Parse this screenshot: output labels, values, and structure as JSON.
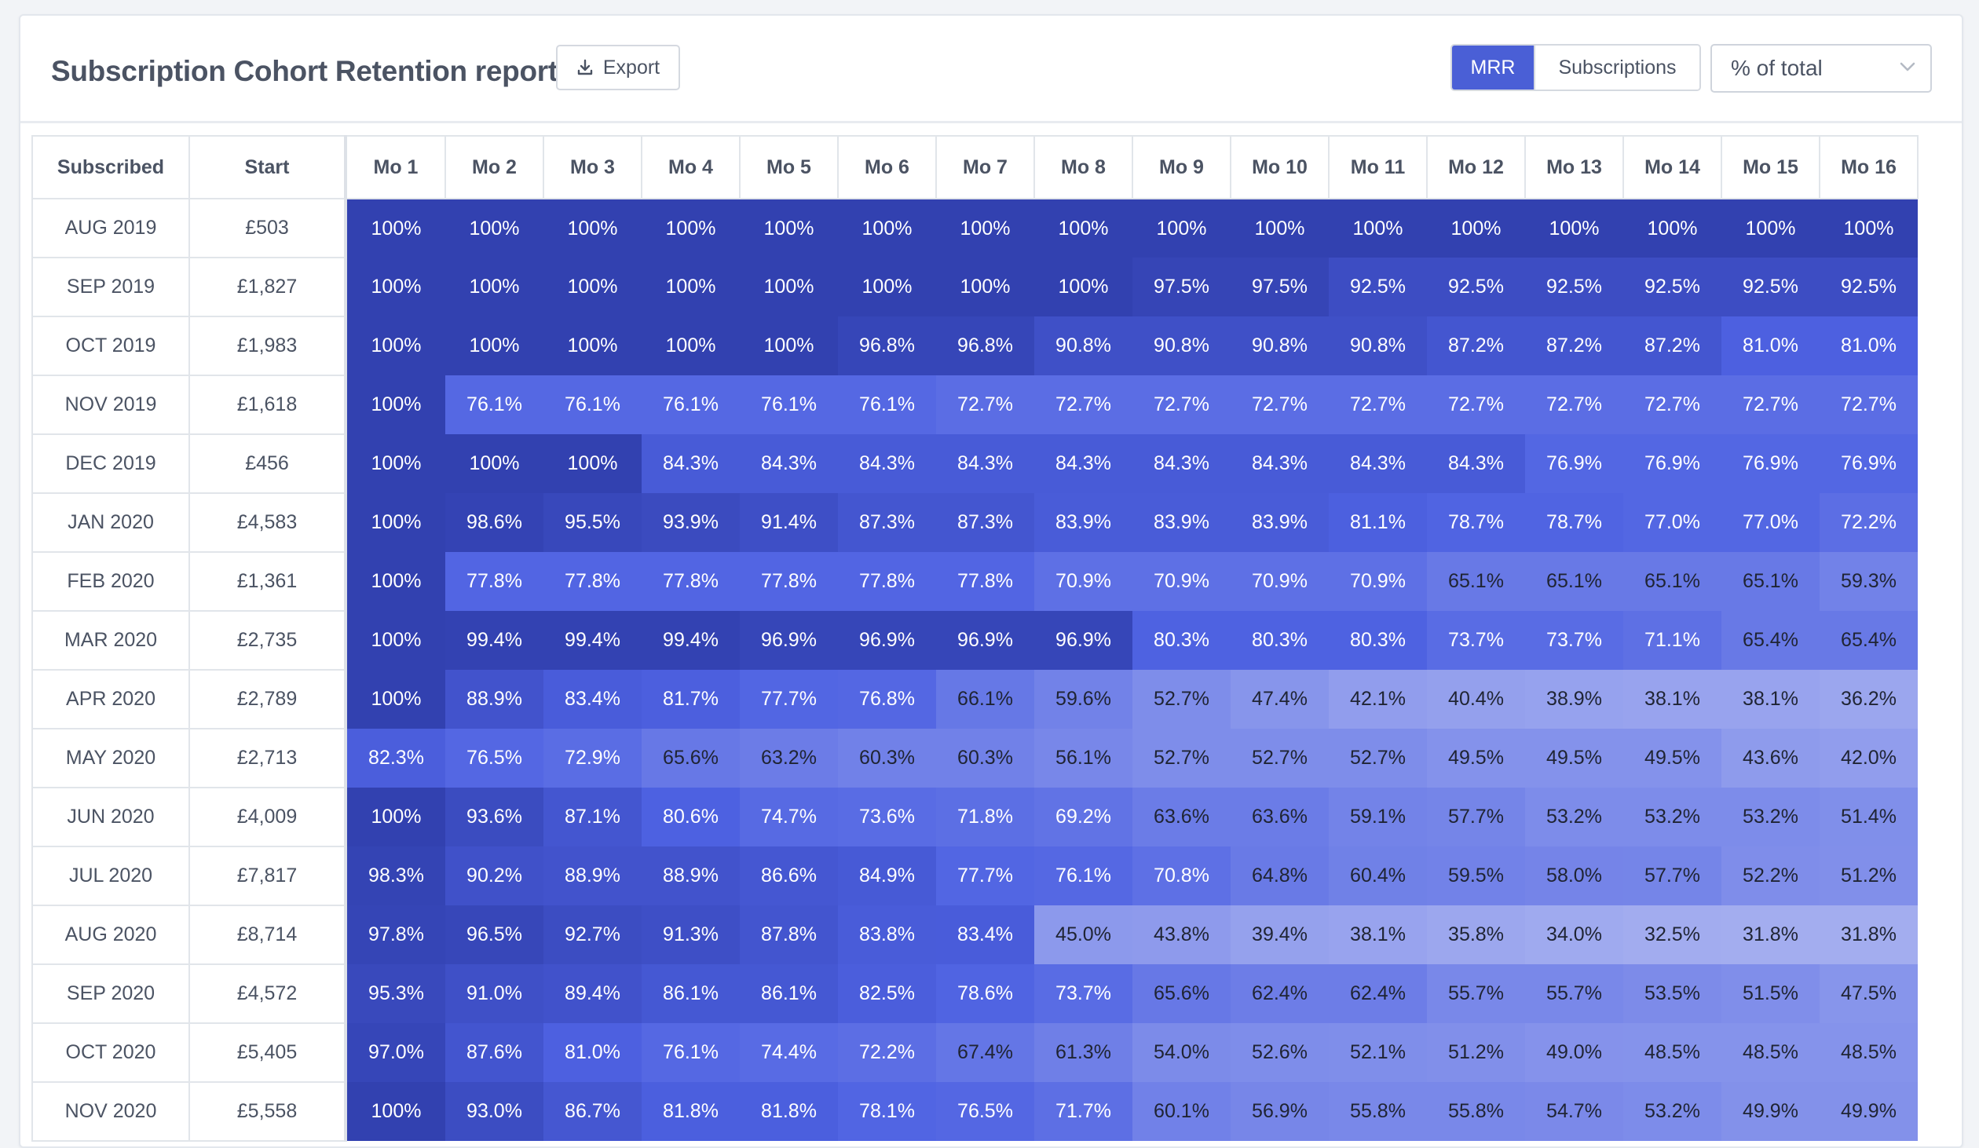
{
  "header": {
    "title": "Subscription Cohort Retention report",
    "export_label": "Export",
    "toggle": {
      "mrr": "MRR",
      "subscriptions": "Subscriptions",
      "active": "MRR"
    },
    "select_value": "% of total"
  },
  "colors": {
    "accent": "#4a5fd6",
    "heat_dark": "#3241b0",
    "heat_light": "#a6b0f0"
  },
  "table": {
    "headers": [
      "Subscribed",
      "Start",
      "Mo 1",
      "Mo 2",
      "Mo 3",
      "Mo 4",
      "Mo 5",
      "Mo 6",
      "Mo 7",
      "Mo 8",
      "Mo 9",
      "Mo 10",
      "Mo 11",
      "Mo 12",
      "Mo 13",
      "Mo 14",
      "Mo 15",
      "Mo 16"
    ],
    "rows": [
      {
        "subscribed": "AUG 2019",
        "start": "£503",
        "values": [
          "100%",
          "100%",
          "100%",
          "100%",
          "100%",
          "100%",
          "100%",
          "100%",
          "100%",
          "100%",
          "100%",
          "100%",
          "100%",
          "100%",
          "100%",
          "100%"
        ]
      },
      {
        "subscribed": "SEP 2019",
        "start": "£1,827",
        "values": [
          "100%",
          "100%",
          "100%",
          "100%",
          "100%",
          "100%",
          "100%",
          "100%",
          "97.5%",
          "97.5%",
          "92.5%",
          "92.5%",
          "92.5%",
          "92.5%",
          "92.5%",
          "92.5%"
        ]
      },
      {
        "subscribed": "OCT 2019",
        "start": "£1,983",
        "values": [
          "100%",
          "100%",
          "100%",
          "100%",
          "100%",
          "96.8%",
          "96.8%",
          "90.8%",
          "90.8%",
          "90.8%",
          "90.8%",
          "87.2%",
          "87.2%",
          "87.2%",
          "81.0%",
          "81.0%"
        ]
      },
      {
        "subscribed": "NOV 2019",
        "start": "£1,618",
        "values": [
          "100%",
          "76.1%",
          "76.1%",
          "76.1%",
          "76.1%",
          "76.1%",
          "72.7%",
          "72.7%",
          "72.7%",
          "72.7%",
          "72.7%",
          "72.7%",
          "72.7%",
          "72.7%",
          "72.7%",
          "72.7%"
        ]
      },
      {
        "subscribed": "DEC 2019",
        "start": "£456",
        "values": [
          "100%",
          "100%",
          "100%",
          "84.3%",
          "84.3%",
          "84.3%",
          "84.3%",
          "84.3%",
          "84.3%",
          "84.3%",
          "84.3%",
          "84.3%",
          "76.9%",
          "76.9%",
          "76.9%",
          "76.9%"
        ]
      },
      {
        "subscribed": "JAN 2020",
        "start": "£4,583",
        "values": [
          "100%",
          "98.6%",
          "95.5%",
          "93.9%",
          "91.4%",
          "87.3%",
          "87.3%",
          "83.9%",
          "83.9%",
          "83.9%",
          "81.1%",
          "78.7%",
          "78.7%",
          "77.0%",
          "77.0%",
          "72.2%"
        ]
      },
      {
        "subscribed": "FEB 2020",
        "start": "£1,361",
        "values": [
          "100%",
          "77.8%",
          "77.8%",
          "77.8%",
          "77.8%",
          "77.8%",
          "77.8%",
          "70.9%",
          "70.9%",
          "70.9%",
          "70.9%",
          "65.1%",
          "65.1%",
          "65.1%",
          "65.1%",
          "59.3%"
        ]
      },
      {
        "subscribed": "MAR 2020",
        "start": "£2,735",
        "values": [
          "100%",
          "99.4%",
          "99.4%",
          "99.4%",
          "96.9%",
          "96.9%",
          "96.9%",
          "96.9%",
          "80.3%",
          "80.3%",
          "80.3%",
          "73.7%",
          "73.7%",
          "71.1%",
          "65.4%",
          "65.4%"
        ]
      },
      {
        "subscribed": "APR 2020",
        "start": "£2,789",
        "values": [
          "100%",
          "88.9%",
          "83.4%",
          "81.7%",
          "77.7%",
          "76.8%",
          "66.1%",
          "59.6%",
          "52.7%",
          "47.4%",
          "42.1%",
          "40.4%",
          "38.9%",
          "38.1%",
          "38.1%",
          "36.2%"
        ]
      },
      {
        "subscribed": "MAY 2020",
        "start": "£2,713",
        "values": [
          "82.3%",
          "76.5%",
          "72.9%",
          "65.6%",
          "63.2%",
          "60.3%",
          "60.3%",
          "56.1%",
          "52.7%",
          "52.7%",
          "52.7%",
          "49.5%",
          "49.5%",
          "49.5%",
          "43.6%",
          "42.0%"
        ]
      },
      {
        "subscribed": "JUN 2020",
        "start": "£4,009",
        "values": [
          "100%",
          "93.6%",
          "87.1%",
          "80.6%",
          "74.7%",
          "73.6%",
          "71.8%",
          "69.2%",
          "63.6%",
          "63.6%",
          "59.1%",
          "57.7%",
          "53.2%",
          "53.2%",
          "53.2%",
          "51.4%"
        ]
      },
      {
        "subscribed": "JUL 2020",
        "start": "£7,817",
        "values": [
          "98.3%",
          "90.2%",
          "88.9%",
          "88.9%",
          "86.6%",
          "84.9%",
          "77.7%",
          "76.1%",
          "70.8%",
          "64.8%",
          "60.4%",
          "59.5%",
          "58.0%",
          "57.7%",
          "52.2%",
          "51.2%"
        ]
      },
      {
        "subscribed": "AUG 2020",
        "start": "£8,714",
        "values": [
          "97.8%",
          "96.5%",
          "92.7%",
          "91.3%",
          "87.8%",
          "83.8%",
          "83.4%",
          "45.0%",
          "43.8%",
          "39.4%",
          "38.1%",
          "35.8%",
          "34.0%",
          "32.5%",
          "31.8%",
          "31.8%"
        ]
      },
      {
        "subscribed": "SEP 2020",
        "start": "£4,572",
        "values": [
          "95.3%",
          "91.0%",
          "89.4%",
          "86.1%",
          "86.1%",
          "82.5%",
          "78.6%",
          "73.7%",
          "65.6%",
          "62.4%",
          "62.4%",
          "55.7%",
          "55.7%",
          "53.5%",
          "51.5%",
          "47.5%"
        ]
      },
      {
        "subscribed": "OCT 2020",
        "start": "£5,405",
        "values": [
          "97.0%",
          "87.6%",
          "81.0%",
          "76.1%",
          "74.4%",
          "72.2%",
          "67.4%",
          "61.3%",
          "54.0%",
          "52.6%",
          "52.1%",
          "51.2%",
          "49.0%",
          "48.5%",
          "48.5%",
          "48.5%"
        ]
      },
      {
        "subscribed": "NOV 2020",
        "start": "£5,558",
        "values": [
          "100%",
          "93.0%",
          "86.7%",
          "81.8%",
          "81.8%",
          "78.1%",
          "76.5%",
          "71.7%",
          "60.1%",
          "56.9%",
          "55.8%",
          "55.8%",
          "54.7%",
          "53.2%",
          "49.9%",
          "49.9%"
        ]
      }
    ]
  }
}
